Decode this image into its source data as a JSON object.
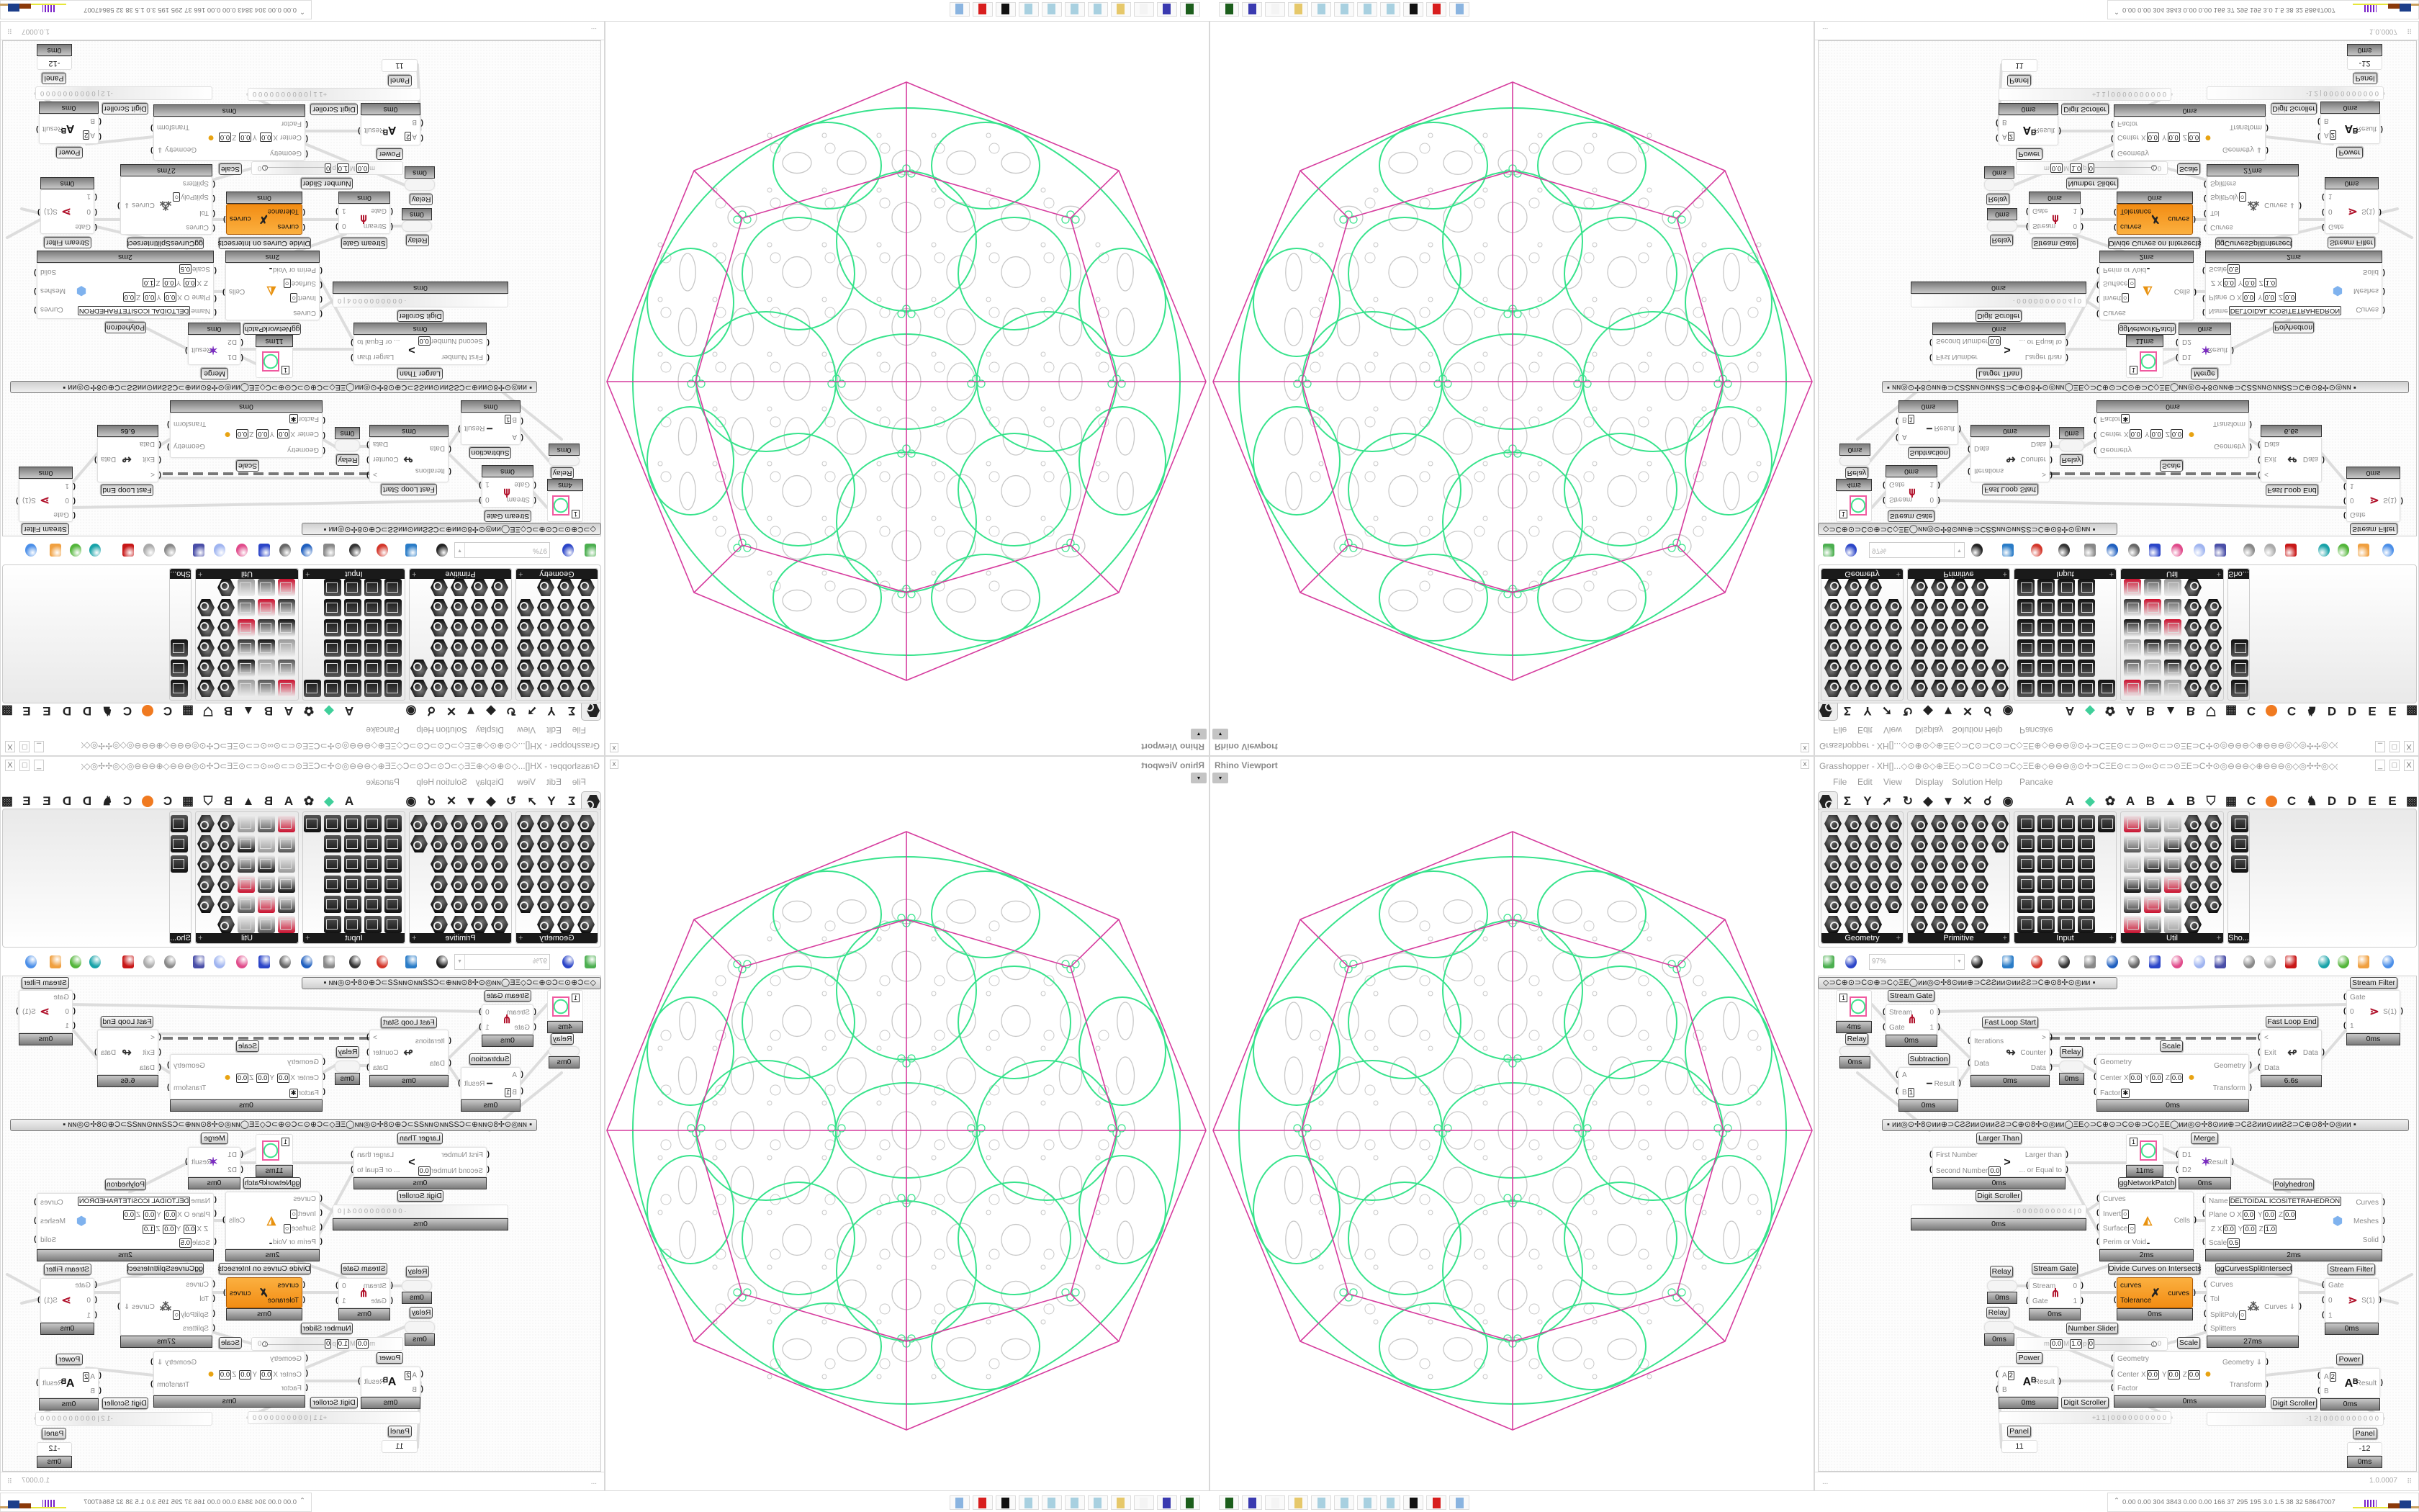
{
  "grasshopper": {
    "title": "Grasshopper - XH[]...◇⊙⊕⊙◇⊕ΞE◇⊃C⊙⊃C⊙⊃C◇ΞE⊕◇⊖⊖⊖◎⊙✢⊃CΞE⊙⊂⊃⊙∞⊙⊂⊃⊙ΞE⊃C✢⊙◎⊖⊖⊖◇⊕⊖⊖⊖◎◇◎✢✢◎◇◎⊖⊖⊙⊖⊖⊕◇⊖⊖⊖◎⊙✢⊃CΞE⊙⊂⊃⊙∞⊙⊂⊃...",
    "window_buttons": [
      "_",
      "□",
      "X"
    ],
    "menu": [
      "File",
      "Edit",
      "View",
      "Display",
      "Solution",
      "Help",
      "Pancake"
    ],
    "tabs": [
      {
        "label": "",
        "icon": "params-hexagon-icon",
        "active": true
      },
      {
        "label": "Σ",
        "icon": "maths-sigma-icon"
      },
      {
        "label": "Y",
        "icon": "sets-tree-icon"
      },
      {
        "label": "➚",
        "icon": "vector-arrow-icon"
      },
      {
        "label": "↻",
        "icon": "curve-icon"
      },
      {
        "label": "◆",
        "icon": "surface-icon"
      },
      {
        "label": "▼",
        "icon": "mesh-icon"
      },
      {
        "label": "✕",
        "icon": "intersect-icon"
      },
      {
        "label": "☌",
        "icon": "transform-icon"
      },
      {
        "label": "◉",
        "icon": "display-eye-icon"
      },
      {
        "label": "A",
        "icon": "letter-a-icon"
      },
      {
        "label": "◆",
        "icon": "green-crystal-icon"
      },
      {
        "label": "✿",
        "icon": "flower-icon"
      },
      {
        "label": "A",
        "icon": "letter-a-icon"
      },
      {
        "label": "B",
        "icon": "letter-b-icon"
      },
      {
        "label": "▲",
        "icon": "mountain-icon"
      },
      {
        "label": "B",
        "icon": "letter-b-icon"
      },
      {
        "label": "⛉",
        "icon": "shield-icon"
      },
      {
        "label": "▦",
        "icon": "grid-icon"
      },
      {
        "label": "C",
        "icon": "letter-c-icon"
      },
      {
        "label": "●",
        "icon": "orange-circle-icon"
      },
      {
        "label": "C",
        "icon": "letter-c-icon"
      },
      {
        "label": "♞",
        "icon": "bird-icon"
      },
      {
        "label": "D",
        "icon": "letter-d-icon"
      },
      {
        "label": "D",
        "icon": "letter-d-icon"
      },
      {
        "label": "E",
        "icon": "letter-e-icon"
      },
      {
        "label": "E",
        "icon": "letter-e-icon"
      },
      {
        "label": "▩",
        "icon": "grid-box-icon"
      }
    ],
    "panels": [
      {
        "label": "Geometry",
        "expand": "+",
        "icon_rows": [
          4,
          4,
          4,
          4,
          4,
          3
        ],
        "style": "hex"
      },
      {
        "label": "Primitive",
        "expand": "+",
        "icon_rows": [
          5,
          5,
          4,
          4,
          4,
          4
        ],
        "style": "hex"
      },
      {
        "label": "Input",
        "expand": "+",
        "icon_rows": [
          5,
          4,
          4,
          4,
          4,
          4
        ],
        "style": "sq"
      },
      {
        "label": "Util",
        "expand": "+",
        "icon_rows": [
          5,
          5,
          5,
          5,
          5,
          4
        ],
        "style": "mix"
      },
      {
        "label": "Sho...",
        "expand": "",
        "icon_rows": [
          1,
          1,
          1
        ],
        "style": "sq"
      }
    ],
    "toolbar": {
      "zoom_value": "97%",
      "icons": [
        "open-file-icon",
        "save-icon",
        "zoom-extents-icon",
        "preview-eye-icon",
        "sketch-pen-icon",
        "bake-icon",
        "email-icon",
        "gha-icon",
        "canvas-snapshot-icon",
        "search-s-icon",
        "package-icon",
        "bulb-icon",
        "wires-icon",
        "shaded-preview-icon",
        "wireframe-preview-icon",
        "red-solid-icon",
        "teal-shape-icon",
        "green-shape-icon",
        "orange-sphere-icon",
        "blue-gem-icon"
      ]
    },
    "groups": [
      "◇⊃C⊕⊙⊃C⊙⊕⊃C◇ΞE◯ᴎᴎ◎⊙✢8⊙ᴎᴎ⊕⊃CƧƧᴎᴎ⊙ᴎᴎƧƧ⊃C⊕⊙8✢⊙◎ᴎᴎ   ▪",
      "▪    ᴎᴎ◎⊙✢8⊙ᴎᴎ⊕⊃CƧƧᴎᴎ⊙ᴎᴎƧƧ⊃C⊕⊙8✢⊙◎ᴎᴎ◯ΞE◇⊃C⊕⊙⊃C⊙⊕⊃C◇ΞE◯ᴎᴎ◎⊙✢8⊙ᴎᴎ⊕⊃CƧƧᴎᴎ⊙ᴎᴎƧƧ⊃C⊕⊙8✢⊙◎ᴎᴎ    ▪"
    ],
    "components": [
      {
        "kind": "swatch",
        "value": "1",
        "footer": "4ms"
      },
      {
        "kind": "relay",
        "label": "Relay",
        "footer": "0ms"
      },
      {
        "kind": "std",
        "label": "Stream Gate",
        "inputs": [
          "Stream",
          "Gate"
        ],
        "outputs": [
          "0",
          "1"
        ],
        "icon": "⋔",
        "icon_name": "stream-gate-icon",
        "icon_color": "#b0102a",
        "footer": "0ms"
      },
      {
        "kind": "std",
        "label": "Subtraction",
        "inputs": [
          "A",
          {
            "name": "B",
            "fields": [
              {
                "axis": "",
                "value": "1"
              }
            ]
          }
        ],
        "outputs": [
          "Result"
        ],
        "icon": "−",
        "icon_name": "minus-icon",
        "icon_color": "#111",
        "footer": "0ms"
      },
      {
        "kind": "std",
        "label": "Fast Loop Start",
        "inputs": [
          "Iterations",
          "Data"
        ],
        "outputs": [
          ">",
          "Counter",
          "Data"
        ],
        "icon": "↬",
        "icon_name": "loop-start-icon",
        "icon_color": "#333",
        "footer": "0ms"
      },
      {
        "kind": "relay",
        "label": "Relay",
        "footer": "0ms"
      },
      {
        "kind": "std",
        "label": "Scale",
        "inputs": [
          "Geometry",
          {
            "name": "Center",
            "fields": [
              {
                "axis": "X",
                "value": "0.0"
              },
              {
                "axis": "Y",
                "value": "0.0"
              },
              {
                "axis": "Z",
                "value": "0.0"
              }
            ]
          },
          {
            "name": "Factor",
            "fields": [
              {
                "axis": "",
                "value": "✱"
              }
            ]
          }
        ],
        "outputs": [
          "Geometry",
          "Transform"
        ],
        "icon": "●",
        "icon_name": "scale-spheres-icon",
        "icon_color": "#e8a312",
        "footer": "0ms"
      },
      {
        "kind": "std",
        "label": "Fast Loop End",
        "inputs": [
          "<",
          "Exit",
          "Data"
        ],
        "outputs": [
          "",
          "Data",
          ""
        ],
        "icon": "↫",
        "icon_name": "loop-end-icon",
        "icon_color": "#333",
        "footer": "6.6s"
      },
      {
        "kind": "std",
        "label": "Stream Filter",
        "inputs": [
          "Gate",
          "0",
          "1"
        ],
        "outputs": [
          "S(1)"
        ],
        "icon": "⋗",
        "icon_name": "stream-filter-icon",
        "icon_color": "#b0102a",
        "footer": "0ms"
      },
      {
        "kind": "std",
        "label": "Larger Than",
        "inputs": [
          "First Number",
          {
            "name": "Second Number",
            "fields": [
              {
                "axis": "",
                "value": "0.0"
              }
            ]
          }
        ],
        "outputs": [
          "Larger than",
          "... or Equal to"
        ],
        "icon": ">",
        "icon_name": "larger-than-icon",
        "icon_color": "#111",
        "footer": "0ms"
      },
      {
        "kind": "swatch",
        "value": "1",
        "footer": "11ms"
      },
      {
        "kind": "std",
        "label": "Merge",
        "inputs": [
          "D1",
          "D2"
        ],
        "outputs": [
          "Result"
        ],
        "icon": "✶",
        "icon_name": "merge-icon",
        "icon_color": "#7a2cc0",
        "footer": "0ms"
      },
      {
        "kind": "std",
        "label": "Polyhedron",
        "inputs": [
          {
            "name": "Name",
            "fields": [
              {
                "axis": "",
                "value": "DELTOIDAL ICOSITETRAHEDRON"
              }
            ]
          },
          {
            "name": "Plane",
            "fields": [
              {
                "axis": "O X",
                "value": "0.0"
              },
              {
                "axis": "Y",
                "value": "0.0"
              },
              {
                "axis": "Z",
                "value": "0.0"
              }
            ]
          },
          {
            "name": "",
            "fields": [
              {
                "axis": "Z X",
                "value": "0.0"
              },
              {
                "axis": "Y",
                "value": "0.0"
              },
              {
                "axis": "Z",
                "value": "1.0"
              }
            ]
          },
          {
            "name": "Scale",
            "fields": [
              {
                "axis": "",
                "value": "0.5"
              }
            ]
          }
        ],
        "outputs": [
          "Curves",
          "Meshes",
          "Solid"
        ],
        "icon": "⬢",
        "icon_name": "polyhedron-icon",
        "icon_color": "#7fb2ee",
        "footer": "2ms"
      },
      {
        "kind": "digits",
        "label": "Digit Scroller",
        "text": "· 0 0 0 0 0 0 0 0 0 4 | 0",
        "footer": "0ms"
      },
      {
        "kind": "std",
        "label": "ggNetworkPatch",
        "inputs": [
          "Curves",
          {
            "name": "Invert",
            "fields": [
              {
                "axis": "",
                "value": "○"
              }
            ]
          },
          {
            "name": "Surface",
            "fields": [
              {
                "axis": "",
                "value": "○"
              }
            ]
          },
          {
            "name": "Perim or Void",
            "fields": [
              {
                "axis": "",
                "value": " "
              }
            ]
          }
        ],
        "outputs": [
          "Cells"
        ],
        "icon": "◭",
        "icon_name": "network-patch-icon",
        "icon_color": "#e8920f",
        "footer": "2ms"
      },
      {
        "kind": "relay",
        "label": "Relay",
        "footer": "0ms"
      },
      {
        "kind": "relay",
        "label": "Relay",
        "footer": "0ms"
      },
      {
        "kind": "std",
        "label": "Stream Gate",
        "inputs": [
          "Stream",
          "Gate"
        ],
        "outputs": [
          "0",
          "1"
        ],
        "icon": "⋔",
        "icon_name": "stream-gate-icon",
        "icon_color": "#b0102a",
        "footer": "0ms"
      },
      {
        "kind": "std",
        "label": "Divide Curves on Intersects",
        "orange": true,
        "inputs": [
          "curves",
          "Tolerance"
        ],
        "outputs": [
          "curves"
        ],
        "icon": "✗",
        "icon_name": "divide-curves-icon",
        "icon_color": "#222",
        "footer": "0ms"
      },
      {
        "kind": "std",
        "label": "ggCurvesSplitIntersect",
        "inputs": [
          "Curves",
          "Tol",
          {
            "name": "SplitPoly",
            "fields": [
              {
                "axis": "",
                "value": "○"
              }
            ]
          },
          "Splitters"
        ],
        "outputs": [
          "Curves ⇓"
        ],
        "icon": "⁂",
        "icon_name": "split-intersect-icon",
        "icon_color": "#555",
        "footer": "27ms"
      },
      {
        "kind": "std",
        "label": "Stream Filter",
        "inputs": [
          "Gate",
          "0",
          "1"
        ],
        "outputs": [
          "S(1)"
        ],
        "icon": "⋗",
        "icon_name": "stream-filter-icon",
        "icon_color": "#b0102a",
        "footer": "0ms"
      },
      {
        "kind": "nslider",
        "label": "Number Slider",
        "fields": [
          {
            "axis": "m",
            "value": "0.0"
          },
          {
            "axis": "M",
            "value": "1.0"
          },
          {
            "axis": "p",
            "value": "0"
          }
        ],
        "value": "1.0",
        "level": 1.0
      },
      {
        "kind": "std",
        "label": "Scale",
        "inputs": [
          "Geometry",
          {
            "name": "Center",
            "fields": [
              {
                "axis": "X",
                "value": "0.0"
              },
              {
                "axis": "Y",
                "value": "0.0"
              },
              {
                "axis": "Z",
                "value": "0.0"
              }
            ]
          },
          "Factor"
        ],
        "outputs": [
          "Geometry ⇓",
          "Transform"
        ],
        "icon": "●",
        "icon_name": "scale-spheres-icon",
        "icon_color": "#e8a312",
        "footer": "0ms"
      },
      {
        "kind": "std",
        "label": "Power",
        "inputs": [
          {
            "name": "A",
            "fields": [
              {
                "axis": "",
                "value": "2"
              }
            ]
          },
          "B"
        ],
        "outputs": [
          "Result"
        ],
        "icon": "Aᴮ",
        "icon_name": "power-icon",
        "icon_color": "#111",
        "footer": "0ms"
      },
      {
        "kind": "digits",
        "label": "Digit Scroller",
        "text": "+1  1 | 0 0 0 0 0 0 0 0 0 0"
      },
      {
        "kind": "panel",
        "label": "Panel",
        "value": "11"
      },
      {
        "kind": "std",
        "label": "Power",
        "inputs": [
          {
            "name": "A",
            "fields": [
              {
                "axis": "",
                "value": "2"
              }
            ]
          },
          "B"
        ],
        "outputs": [
          "Result"
        ],
        "icon": "Aᴮ",
        "icon_name": "power-icon",
        "icon_color": "#111",
        "footer": "0ms"
      },
      {
        "kind": "digits",
        "label": "Digit Scroller",
        "text": "-1  2 | 0 0 0 0 0 0 0 0 0 0"
      },
      {
        "kind": "panel",
        "label": "Panel",
        "value": "-12",
        "footer": "0ms"
      }
    ],
    "status": {
      "left": "...",
      "version": "1.0.0007"
    },
    "stats": {
      "collapse": "⌃",
      "text": "0.00 0.00 304 3843 0.00 0.00 166  37  295  195  3.0  1.5  38  32  58647007"
    }
  },
  "viewport": {
    "title": "Rhino Viewport",
    "close": "x",
    "dropdown": "▾"
  },
  "taskbar_icons": [
    "usb-drive-icon",
    "floppy-64-icon",
    "blank-icon",
    "folder-icon",
    "notepad-icon",
    "notepad-icon",
    "notepad-icon",
    "notepad-icon",
    "inkscape-icon",
    "red-app-icon",
    "calculator-icon"
  ],
  "colors": {
    "polyhedron_edges": "#d63c9e",
    "patch_curves": "#38e38c",
    "pattern": "#c8c8c8",
    "component_selected": "#f7941d",
    "wire": "#d6d6d6"
  }
}
